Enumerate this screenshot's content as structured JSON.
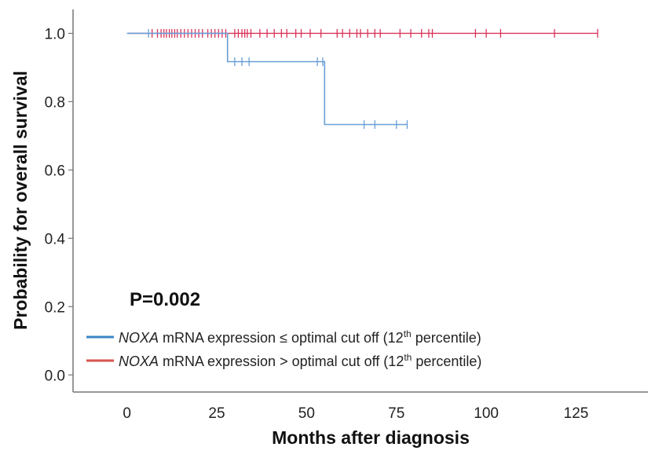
{
  "chart_data": {
    "type": "line",
    "subtype": "kaplan-meier",
    "xlabel": "Months after diagnosis",
    "ylabel": "Probability for overall survival",
    "xlim": [
      -15,
      145
    ],
    "ylim": [
      -0.05,
      1.07
    ],
    "xticks": [
      "0",
      "25",
      "50",
      "75",
      "100",
      "125"
    ],
    "xtick_values": [
      0,
      25,
      50,
      75,
      100,
      125
    ],
    "yticks": [
      "0.0",
      "0.2",
      "0.4",
      "0.6",
      "0.8",
      "1.0"
    ],
    "ytick_values": [
      0.0,
      0.2,
      0.4,
      0.6,
      0.8,
      1.0
    ],
    "annotation": "P=0.002",
    "legend_position": "bottom-left",
    "series": [
      {
        "name_italic": "NOXA",
        "name_rest": " mRNA expression ≤ optimal cut off (12",
        "name_sup": "th",
        "name_end": " percentile)",
        "color": "#6a9fd6",
        "legend_color": "#3a87c7",
        "steps": [
          [
            0,
            1.0
          ],
          [
            28,
            1.0
          ],
          [
            28,
            0.917
          ],
          [
            55,
            0.917
          ],
          [
            55,
            0.733
          ],
          [
            78,
            0.733
          ]
        ],
        "censored": [
          [
            6,
            1.0
          ],
          [
            30,
            0.917
          ],
          [
            32,
            0.917
          ],
          [
            34,
            0.917
          ],
          [
            53,
            0.917
          ],
          [
            54.5,
            0.917
          ],
          [
            66,
            0.733
          ],
          [
            69,
            0.733
          ],
          [
            75,
            0.733
          ],
          [
            78,
            0.733
          ]
        ]
      },
      {
        "name_italic": "NOXA",
        "name_rest": " mRNA expression > optimal cut off (12",
        "name_sup": "th",
        "name_end": " percentile)",
        "color": "#d9345a",
        "legend_color": "#d9534f",
        "steps": [
          [
            0.5,
            1.0
          ],
          [
            131,
            1.0
          ]
        ],
        "censored": [
          [
            7,
            1.0
          ],
          [
            8.5,
            1.0
          ],
          [
            9.5,
            1.0
          ],
          [
            10.3,
            1.0
          ],
          [
            11,
            1.0
          ],
          [
            11.8,
            1.0
          ],
          [
            12.5,
            1.0
          ],
          [
            13.3,
            1.0
          ],
          [
            14,
            1.0
          ],
          [
            15,
            1.0
          ],
          [
            16,
            1.0
          ],
          [
            17,
            1.0
          ],
          [
            18,
            1.0
          ],
          [
            19,
            1.0
          ],
          [
            20,
            1.0
          ],
          [
            21,
            1.0
          ],
          [
            22.5,
            1.0
          ],
          [
            23.5,
            1.0
          ],
          [
            24.5,
            1.0
          ],
          [
            25.5,
            1.0
          ],
          [
            26.5,
            1.0
          ],
          [
            27.5,
            1.0
          ],
          [
            30,
            1.0
          ],
          [
            31,
            1.0
          ],
          [
            32,
            1.0
          ],
          [
            32.8,
            1.0
          ],
          [
            33.5,
            1.0
          ],
          [
            34.5,
            1.0
          ],
          [
            37,
            1.0
          ],
          [
            39,
            1.0
          ],
          [
            41,
            1.0
          ],
          [
            43,
            1.0
          ],
          [
            44.5,
            1.0
          ],
          [
            47,
            1.0
          ],
          [
            48.5,
            1.0
          ],
          [
            51,
            1.0
          ],
          [
            54,
            1.0
          ],
          [
            58.5,
            1.0
          ],
          [
            60,
            1.0
          ],
          [
            62,
            1.0
          ],
          [
            64,
            1.0
          ],
          [
            65,
            1.0
          ],
          [
            67,
            1.0
          ],
          [
            69,
            1.0
          ],
          [
            70.5,
            1.0
          ],
          [
            76,
            1.0
          ],
          [
            79,
            1.0
          ],
          [
            82,
            1.0
          ],
          [
            84,
            1.0
          ],
          [
            85,
            1.0
          ],
          [
            97,
            1.0
          ],
          [
            100,
            1.0
          ],
          [
            104,
            1.0
          ],
          [
            119,
            1.0
          ],
          [
            131,
            1.0
          ]
        ]
      }
    ]
  }
}
